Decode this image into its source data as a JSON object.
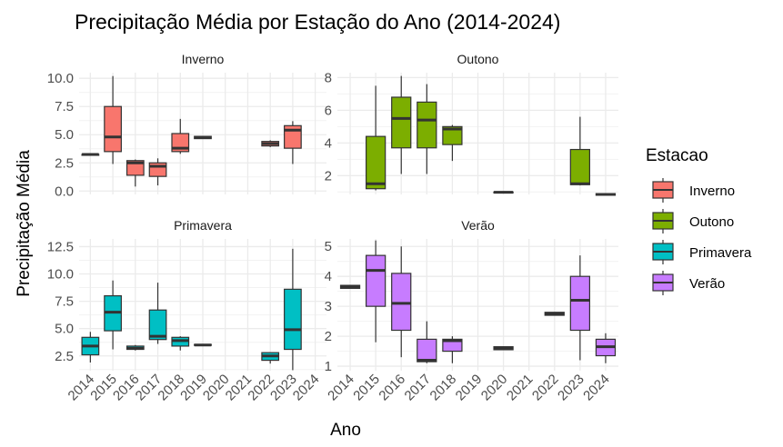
{
  "chart_data": {
    "type": "box",
    "title": "Precipitação Média por Estação do Ano (2014-2024)",
    "xlabel": "Ano",
    "ylabel": "Precipitação Média",
    "categories": [
      "2014",
      "2015",
      "2016",
      "2017",
      "2018",
      "2019",
      "2020",
      "2021",
      "2022",
      "2023",
      "2024"
    ],
    "legend": {
      "title": "Estacao",
      "placement": "right",
      "entries": [
        {
          "label": "Inverno",
          "color": "#F8766D"
        },
        {
          "label": "Outono",
          "color": "#7CAE00"
        },
        {
          "label": "Primavera",
          "color": "#00BFC4"
        },
        {
          "label": "Verão",
          "color": "#C77CFF"
        }
      ]
    },
    "grid": true,
    "facets": [
      {
        "name": "Inverno",
        "color": "#F8766D",
        "ylim": [
          -0.3,
          10.5
        ],
        "yticks": [
          0.0,
          2.5,
          5.0,
          7.5,
          10.0
        ],
        "yticklabels": [
          "0.0",
          "2.5",
          "5.0",
          "7.5",
          "10.0"
        ],
        "boxes": [
          {
            "x": "2014",
            "min": 3.25,
            "q1": 3.25,
            "median": 3.25,
            "q3": 3.25,
            "max": 3.25
          },
          {
            "x": "2015",
            "min": 2.4,
            "q1": 3.5,
            "median": 4.8,
            "q3": 7.5,
            "max": 10.2
          },
          {
            "x": "2016",
            "min": 0.4,
            "q1": 1.4,
            "median": 2.5,
            "q3": 2.7,
            "max": 2.8
          },
          {
            "x": "2017",
            "min": 0.5,
            "q1": 1.3,
            "median": 2.2,
            "q3": 2.5,
            "max": 2.9
          },
          {
            "x": "2018",
            "min": 3.3,
            "q1": 3.5,
            "median": 3.8,
            "q3": 5.1,
            "max": 6.4
          },
          {
            "x": "2019",
            "min": 4.65,
            "q1": 4.65,
            "median": 4.75,
            "q3": 4.85,
            "max": 4.85
          },
          {
            "x": "2022",
            "min": 3.9,
            "q1": 4.0,
            "median": 4.2,
            "q3": 4.4,
            "max": 4.5
          },
          {
            "x": "2023",
            "min": 2.4,
            "q1": 3.8,
            "median": 5.4,
            "q3": 5.8,
            "max": 6.2
          }
        ]
      },
      {
        "name": "Outono",
        "color": "#7CAE00",
        "ylim": [
          0.85,
          8.3
        ],
        "yticks": [
          2,
          4,
          6,
          8
        ],
        "yticklabels": [
          "2",
          "4",
          "6",
          "8"
        ],
        "boxes": [
          {
            "x": "2015",
            "min": 1.1,
            "q1": 1.2,
            "median": 1.5,
            "q3": 4.4,
            "max": 7.5
          },
          {
            "x": "2016",
            "min": 2.1,
            "q1": 3.7,
            "median": 5.5,
            "q3": 6.8,
            "max": 8.1
          },
          {
            "x": "2017",
            "min": 2.1,
            "q1": 3.7,
            "median": 5.4,
            "q3": 6.5,
            "max": 7.6
          },
          {
            "x": "2018",
            "min": 2.9,
            "q1": 3.9,
            "median": 4.85,
            "q3": 5.0,
            "max": 5.1
          },
          {
            "x": "2020",
            "min": 0.95,
            "q1": 0.95,
            "median": 0.98,
            "q3": 1.0,
            "max": 1.0
          },
          {
            "x": "2023",
            "min": 1.4,
            "q1": 1.45,
            "median": 1.5,
            "q3": 3.6,
            "max": 5.6
          },
          {
            "x": "2024",
            "min": 0.8,
            "q1": 0.8,
            "median": 0.85,
            "q3": 0.9,
            "max": 0.9
          }
        ]
      },
      {
        "name": "Primavera",
        "color": "#00BFC4",
        "ylim": [
          1.15,
          13.2
        ],
        "yticks": [
          2.5,
          5.0,
          7.5,
          10.0,
          12.5
        ],
        "yticklabels": [
          "2.5",
          "5.0",
          "7.5",
          "10.0",
          "12.5"
        ],
        "boxes": [
          {
            "x": "2014",
            "min": 1.9,
            "q1": 2.6,
            "median": 3.4,
            "q3": 4.2,
            "max": 4.7
          },
          {
            "x": "2015",
            "min": 3.1,
            "q1": 4.8,
            "median": 6.5,
            "q3": 8.0,
            "max": 9.4
          },
          {
            "x": "2016",
            "min": 3.0,
            "q1": 3.1,
            "median": 3.2,
            "q3": 3.4,
            "max": 3.5
          },
          {
            "x": "2017",
            "min": 3.6,
            "q1": 4.0,
            "median": 4.3,
            "q3": 6.7,
            "max": 9.2
          },
          {
            "x": "2018",
            "min": 3.0,
            "q1": 3.4,
            "median": 3.9,
            "q3": 4.2,
            "max": 4.3
          },
          {
            "x": "2019",
            "min": 3.45,
            "q1": 3.5,
            "median": 3.5,
            "q3": 3.55,
            "max": 3.55
          },
          {
            "x": "2022",
            "min": 1.8,
            "q1": 2.1,
            "median": 2.5,
            "q3": 2.8,
            "max": 2.8
          },
          {
            "x": "2023",
            "min": 1.2,
            "q1": 3.1,
            "median": 4.9,
            "q3": 8.6,
            "max": 12.3
          }
        ]
      },
      {
        "name": "Verão",
        "color": "#C77CFF",
        "ylim": [
          0.85,
          5.25
        ],
        "yticks": [
          1,
          2,
          3,
          4,
          5
        ],
        "yticklabels": [
          "1",
          "2",
          "3",
          "4",
          "5"
        ],
        "boxes": [
          {
            "x": "2014",
            "min": 3.6,
            "q1": 3.6,
            "median": 3.65,
            "q3": 3.7,
            "max": 3.7
          },
          {
            "x": "2015",
            "min": 1.8,
            "q1": 3.0,
            "median": 4.2,
            "q3": 4.7,
            "max": 5.2
          },
          {
            "x": "2016",
            "min": 1.3,
            "q1": 2.2,
            "median": 3.1,
            "q3": 4.1,
            "max": 5.0
          },
          {
            "x": "2017",
            "min": 1.1,
            "q1": 1.15,
            "median": 1.2,
            "q3": 1.9,
            "max": 2.5
          },
          {
            "x": "2018",
            "min": 1.1,
            "q1": 1.5,
            "median": 1.85,
            "q3": 1.9,
            "max": 2.0
          },
          {
            "x": "2020",
            "min": 1.55,
            "q1": 1.55,
            "median": 1.6,
            "q3": 1.65,
            "max": 1.65
          },
          {
            "x": "2022",
            "min": 2.7,
            "q1": 2.7,
            "median": 2.75,
            "q3": 2.8,
            "max": 2.8
          },
          {
            "x": "2023",
            "min": 1.2,
            "q1": 2.2,
            "median": 3.2,
            "q3": 4.0,
            "max": 4.7
          },
          {
            "x": "2024",
            "min": 1.1,
            "q1": 1.35,
            "median": 1.65,
            "q3": 1.9,
            "max": 2.1
          }
        ]
      }
    ]
  }
}
